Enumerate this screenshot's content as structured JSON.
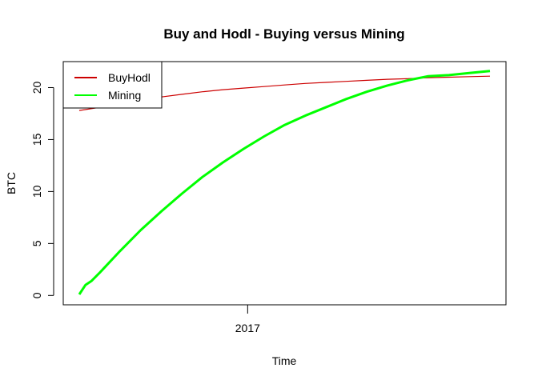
{
  "chart_data": {
    "type": "line",
    "title": "Buy and Hodl - Buying versus Mining",
    "xlabel": "Time",
    "ylabel": "BTC",
    "x_tick_labels": [
      "2017"
    ],
    "y_ticks": [
      0,
      5,
      10,
      15,
      20
    ],
    "ylim": [
      -0.9,
      22.5
    ],
    "x_range": [
      0,
      100
    ],
    "x_tick_positions": [
      41
    ],
    "grid": false,
    "legend": {
      "placement": "top-left",
      "entries": [
        "BuyHodl",
        "Mining"
      ]
    },
    "series": [
      {
        "name": "BuyHodl",
        "color": "#CC0000",
        "stroke_width": 1.2,
        "x": [
          0,
          5,
          10,
          15,
          20,
          25,
          30,
          35,
          40,
          45,
          50,
          55,
          60,
          65,
          70,
          75,
          80,
          85,
          90,
          95,
          100
        ],
        "values": [
          17.8,
          18.1,
          18.5,
          18.8,
          19.1,
          19.35,
          19.6,
          19.8,
          19.95,
          20.1,
          20.25,
          20.4,
          20.5,
          20.6,
          20.7,
          20.8,
          20.85,
          20.95,
          21.0,
          21.05,
          21.1
        ]
      },
      {
        "name": "Mining",
        "color": "#00FF00",
        "stroke_width": 3,
        "x": [
          0,
          1.5,
          3,
          5,
          10,
          15,
          20,
          25,
          30,
          35,
          40,
          45,
          50,
          55,
          60,
          65,
          70,
          75,
          80,
          85,
          90,
          95,
          100
        ],
        "values": [
          0.1,
          1.0,
          1.4,
          2.2,
          4.3,
          6.3,
          8.1,
          9.8,
          11.4,
          12.8,
          14.1,
          15.3,
          16.4,
          17.3,
          18.1,
          18.9,
          19.6,
          20.2,
          20.7,
          21.1,
          21.2,
          21.4,
          21.6
        ]
      }
    ]
  }
}
